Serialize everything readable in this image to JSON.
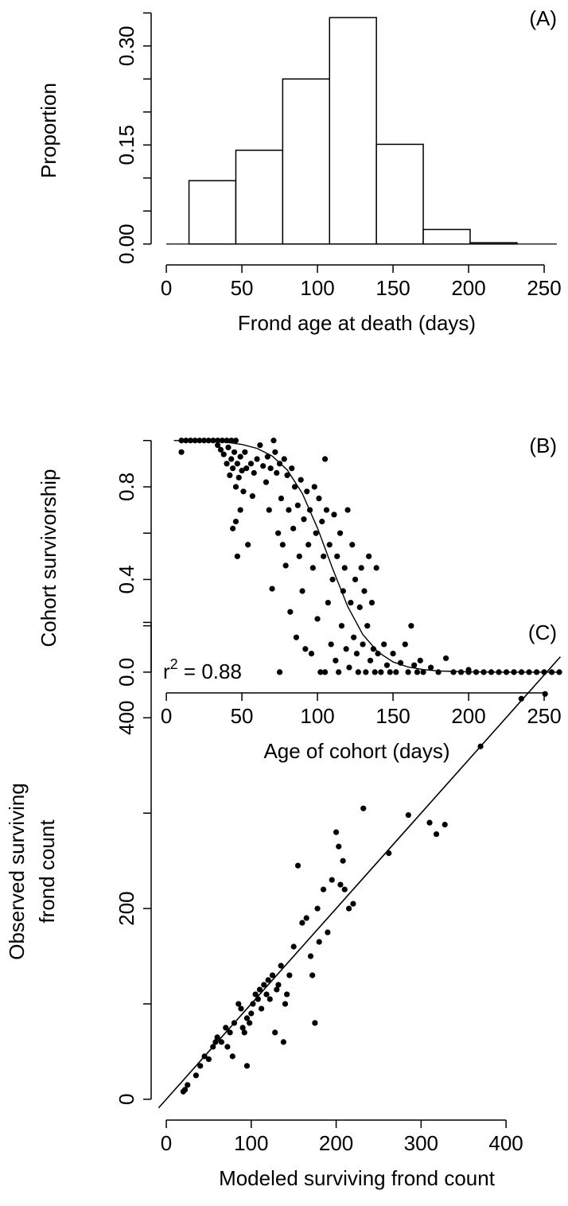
{
  "chart_data": [
    {
      "type": "histogram",
      "panel_label": "(A)",
      "x_label": "Frond age at death (days)",
      "y_label": "Proportion",
      "bins": [
        15,
        46,
        77,
        108,
        139,
        170,
        201,
        232,
        263
      ],
      "values": [
        0.096,
        0.142,
        0.25,
        0.343,
        0.151,
        0.022,
        0.002,
        0
      ],
      "xlim": [
        -5.3,
        260.5
      ],
      "xticks": [
        0,
        50,
        100,
        150,
        200,
        250
      ],
      "ylim": [
        -0.016,
        0.36
      ],
      "yticks": [
        {
          "value": 0,
          "label": "0.00"
        },
        0.15,
        {
          "value": 0.3,
          "label": "0.30"
        }
      ],
      "yticks_unlabeled": [
        0.05,
        0.1,
        0.2,
        0.25,
        0.35
      ],
      "color": "#ffffff"
    },
    {
      "type": "scatter",
      "panel_label": "(B)",
      "x_label": "Age of cohort (days)",
      "y_label": "Cohort survivorship",
      "x": [
        10,
        13,
        16,
        19,
        22,
        25,
        28,
        31,
        34,
        37,
        40,
        43,
        46,
        10,
        34,
        36,
        38,
        40,
        41,
        42,
        43,
        44,
        45,
        46,
        47,
        48,
        49,
        50,
        51,
        44,
        46,
        47,
        49,
        52,
        53,
        54,
        56,
        57,
        58,
        60,
        62,
        64,
        66,
        67,
        68,
        69,
        70,
        71,
        72,
        73,
        74,
        75,
        75,
        76,
        77,
        78,
        79,
        80,
        81,
        82,
        83,
        84,
        85,
        86,
        87,
        88,
        89,
        90,
        91,
        92,
        93,
        94,
        95,
        96,
        97,
        98,
        99,
        100,
        101,
        102,
        103,
        104,
        105,
        105,
        106,
        107,
        108,
        109,
        110,
        111,
        112,
        113,
        114,
        115,
        116,
        117,
        118,
        119,
        120,
        121,
        122,
        123,
        124,
        125,
        126,
        127,
        128,
        129,
        130,
        131,
        132,
        133,
        134,
        135,
        136,
        137,
        138,
        139,
        140,
        142,
        144,
        146,
        148,
        150,
        152,
        155,
        158,
        160,
        162,
        164,
        166,
        168,
        170,
        175,
        180,
        185,
        190,
        195,
        200,
        200,
        205,
        210,
        215,
        220,
        225,
        230,
        235,
        240,
        245,
        250,
        255,
        260
      ],
      "y": [
        1,
        1,
        1,
        1,
        1,
        1,
        1,
        1,
        1,
        1,
        1,
        1,
        1,
        0.95,
        0.98,
        0.96,
        0.94,
        0.9,
        0.97,
        0.85,
        0.92,
        0.88,
        0.95,
        0.8,
        0.9,
        0.84,
        0.93,
        0.87,
        0.78,
        0.62,
        0.65,
        0.5,
        0.7,
        0.95,
        0.88,
        0.55,
        0.9,
        0.76,
        0.86,
        0.92,
        0.98,
        0.89,
        0.82,
        0.93,
        0.7,
        0.88,
        0.36,
        1,
        0.95,
        0.86,
        0.6,
        0,
        0.9,
        0.75,
        0.55,
        0.92,
        0.46,
        0.85,
        0.7,
        0.26,
        0.88,
        0.62,
        0.8,
        0.15,
        0.72,
        0.5,
        0.83,
        0.35,
        0.66,
        0.1,
        0.78,
        0.55,
        0.7,
        0.08,
        0.45,
        0.8,
        0.6,
        0.23,
        0.75,
        0,
        0.65,
        0.5,
        0.92,
        0,
        0.7,
        0.3,
        0.55,
        0.12,
        0.4,
        0.68,
        0.05,
        0.5,
        0,
        0.6,
        0.2,
        0.35,
        0.45,
        0.1,
        0.7,
        0.02,
        0.3,
        0.55,
        0.15,
        0.4,
        0.08,
        0,
        0.28,
        0.45,
        0.12,
        0.35,
        0,
        0.2,
        0.5,
        0.05,
        0.3,
        0.1,
        0,
        0.45,
        0.08,
        0,
        0.12,
        0.03,
        0,
        0.08,
        0,
        0.04,
        0.12,
        0,
        0.2,
        0.03,
        0,
        0.05,
        0,
        0.02,
        0,
        0.06,
        0,
        0,
        0,
        0.01,
        0,
        0,
        0,
        0,
        0,
        0,
        0,
        0,
        0,
        0,
        0,
        0
      ],
      "curve": {
        "x": [
          5,
          20,
          30,
          40,
          50,
          60,
          70,
          80,
          90,
          100,
          110,
          120,
          130,
          140,
          150,
          160,
          170,
          180,
          190,
          200,
          220,
          240,
          260
        ],
        "y": [
          1,
          0.998,
          0.996,
          0.992,
          0.983,
          0.966,
          0.933,
          0.873,
          0.771,
          0.622,
          0.447,
          0.283,
          0.162,
          0.087,
          0.044,
          0.022,
          0.011,
          0.005,
          0.003,
          0.001,
          0,
          0,
          0
        ]
      },
      "xlim": [
        -5.3,
        260.5
      ],
      "xticks": [
        0,
        50,
        100,
        150,
        200,
        250
      ],
      "ylim": [
        -0.045,
        1.03
      ],
      "yticks": [
        {
          "value": 0,
          "label": "0.0"
        },
        0.4,
        0.8
      ],
      "yticks_unlabeled": [
        0.2,
        0.6,
        1
      ],
      "color": "#000000"
    },
    {
      "type": "scatter",
      "panel_label": "(C)",
      "x_label": "Modeled surviving frond count",
      "y_label": [
        "Observed surviving",
        "frond count"
      ],
      "annotation": {
        "base": "r",
        "sup": "2",
        "rest": " = 0.88"
      },
      "x": [
        20,
        25,
        22,
        35,
        40,
        45,
        50,
        55,
        60,
        58,
        65,
        70,
        72,
        75,
        78,
        80,
        85,
        88,
        90,
        92,
        95,
        95,
        98,
        100,
        102,
        105,
        108,
        110,
        112,
        115,
        118,
        120,
        122,
        125,
        128,
        130,
        132,
        135,
        138,
        140,
        142,
        145,
        150,
        155,
        160,
        165,
        170,
        172,
        175,
        178,
        180,
        185,
        190,
        195,
        200,
        203,
        205,
        208,
        210,
        215,
        220,
        232,
        262,
        285,
        310,
        318,
        328,
        370,
        418,
        446
      ],
      "y": [
        8,
        15,
        10,
        25,
        35,
        45,
        42,
        55,
        65,
        60,
        60,
        75,
        55,
        70,
        45,
        80,
        100,
        95,
        75,
        70,
        35,
        85,
        80,
        90,
        100,
        110,
        105,
        115,
        95,
        120,
        110,
        125,
        105,
        130,
        70,
        115,
        120,
        140,
        60,
        100,
        110,
        130,
        160,
        245,
        185,
        190,
        150,
        130,
        80,
        200,
        165,
        220,
        175,
        230,
        280,
        265,
        225,
        250,
        220,
        200,
        205,
        305,
        258,
        298,
        290,
        278,
        288,
        370,
        420,
        425
      ],
      "fit_line": {
        "x": [
          -9,
          464
        ],
        "y": [
          -9,
          464
        ]
      },
      "xlim": [
        -9.4,
        463.6
      ],
      "xticks": [
        0,
        100,
        200,
        300,
        400
      ],
      "ylim": [
        -11,
        502
      ],
      "yticks": [
        0,
        200,
        400
      ],
      "yticks_unlabeled": [
        100,
        300,
        500
      ],
      "color": "#000000"
    }
  ]
}
